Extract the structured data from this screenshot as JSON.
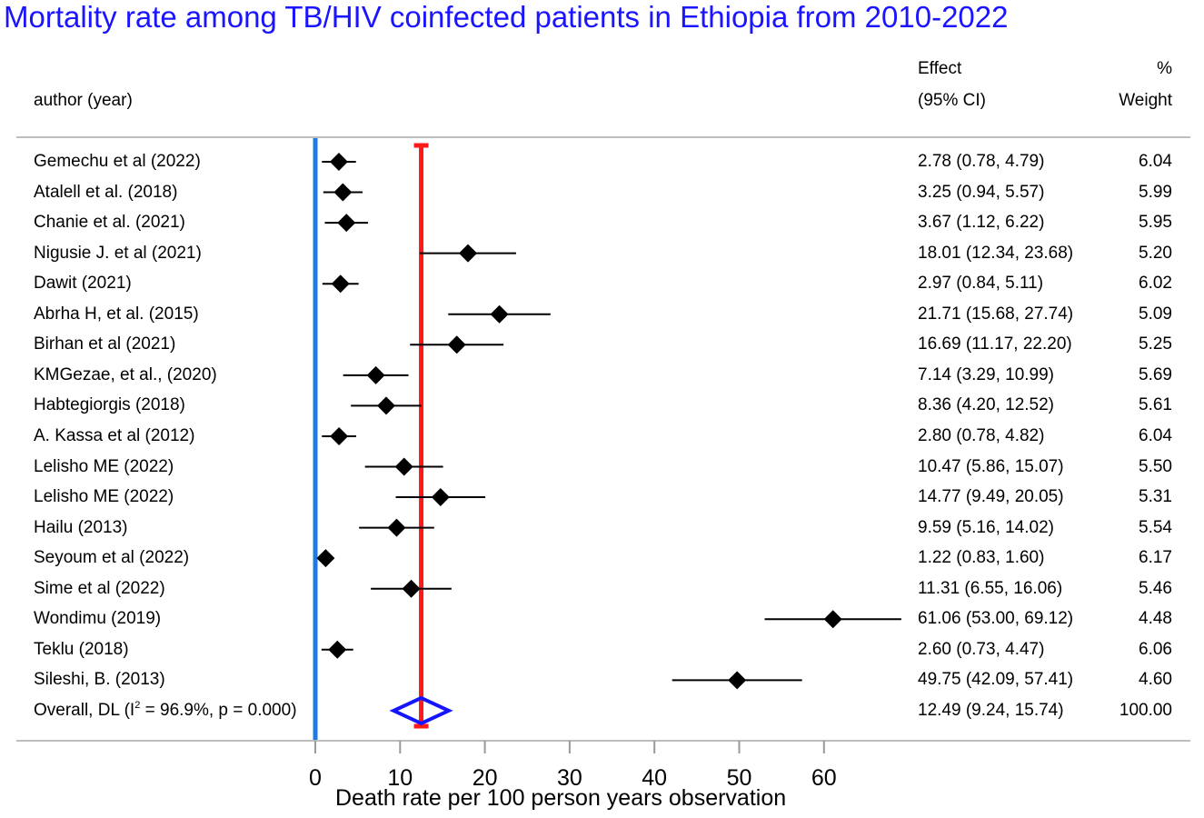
{
  "chart_data": {
    "type": "forest",
    "title": "Mortality rate among TB/HIV coinfected patients in Ethiopia from 2010-2022",
    "header": {
      "author_label": "author (year)",
      "effect_line1": "Effect",
      "effect_line2": "(95% CI)",
      "weight_line1": "%",
      "weight_line2": "Weight"
    },
    "xlabel": "Death rate per 100 person years observation",
    "xticks": [
      "0",
      "10",
      "20",
      "30",
      "40",
      "50",
      "60"
    ],
    "xlim": [
      0,
      70
    ],
    "null_line": 0,
    "pooled_line": 12.49,
    "colors": {
      "title": "#1a14ff",
      "null_line": "#1e7be0",
      "pooled_line": "#ff1a1a",
      "overall_diamond": "#1414ff",
      "study_marker": "#000000"
    },
    "studies": [
      {
        "label": "Gemechu et al (2022)",
        "es": 2.78,
        "lo": 0.78,
        "hi": 4.79,
        "ci_text": "2.78 (0.78, 4.79)",
        "weight": "6.04"
      },
      {
        "label": "Atalell et al.  (2018)",
        "es": 3.25,
        "lo": 0.94,
        "hi": 5.57,
        "ci_text": "3.25 (0.94, 5.57)",
        "weight": "5.99"
      },
      {
        "label": "Chanie et al. (2021)",
        "es": 3.67,
        "lo": 1.12,
        "hi": 6.22,
        "ci_text": "3.67 (1.12, 6.22)",
        "weight": "5.95"
      },
      {
        "label": "Nigusie J. et al (2021)",
        "es": 18.01,
        "lo": 12.34,
        "hi": 23.68,
        "ci_text": "18.01 (12.34, 23.68)",
        "weight": "5.20"
      },
      {
        "label": "Dawit (2021)",
        "es": 2.97,
        "lo": 0.84,
        "hi": 5.11,
        "ci_text": "2.97 (0.84, 5.11)",
        "weight": "6.02"
      },
      {
        "label": "Abrha H, et al. (2015)",
        "es": 21.71,
        "lo": 15.68,
        "hi": 27.74,
        "ci_text": "21.71 (15.68, 27.74)",
        "weight": "5.09"
      },
      {
        "label": "Birhan et al (2021)",
        "es": 16.69,
        "lo": 11.17,
        "hi": 22.2,
        "ci_text": "16.69 (11.17, 22.20)",
        "weight": "5.25"
      },
      {
        "label": "KMGezae, et al., (2020)",
        "es": 7.14,
        "lo": 3.29,
        "hi": 10.99,
        "ci_text": "7.14 (3.29, 10.99)",
        "weight": "5.69"
      },
      {
        "label": "Habtegiorgis (2018)",
        "es": 8.36,
        "lo": 4.2,
        "hi": 12.52,
        "ci_text": "8.36 (4.20, 12.52)",
        "weight": "5.61"
      },
      {
        "label": "A. Kassa et al (2012)",
        "es": 2.8,
        "lo": 0.78,
        "hi": 4.82,
        "ci_text": "2.80 (0.78, 4.82)",
        "weight": "6.04"
      },
      {
        "label": "Lelisho ME (2022)",
        "es": 10.47,
        "lo": 5.86,
        "hi": 15.07,
        "ci_text": "10.47 (5.86, 15.07)",
        "weight": "5.50"
      },
      {
        "label": "Lelisho ME (2022)",
        "es": 14.77,
        "lo": 9.49,
        "hi": 20.05,
        "ci_text": "14.77 (9.49, 20.05)",
        "weight": "5.31"
      },
      {
        "label": "Hailu (2013)",
        "es": 9.59,
        "lo": 5.16,
        "hi": 14.02,
        "ci_text": "9.59 (5.16, 14.02)",
        "weight": "5.54"
      },
      {
        "label": "Seyoum et al (2022)",
        "es": 1.22,
        "lo": 0.83,
        "hi": 1.6,
        "ci_text": "1.22 (0.83, 1.60)",
        "weight": "6.17"
      },
      {
        "label": "Sime et al (2022)",
        "es": 11.31,
        "lo": 6.55,
        "hi": 16.06,
        "ci_text": "11.31 (6.55, 16.06)",
        "weight": "5.46"
      },
      {
        "label": "Wondimu (2019)",
        "es": 61.06,
        "lo": 53.0,
        "hi": 69.12,
        "ci_text": "61.06 (53.00, 69.12)",
        "weight": "4.48"
      },
      {
        "label": "Teklu (2018)",
        "es": 2.6,
        "lo": 0.73,
        "hi": 4.47,
        "ci_text": "2.60 (0.73, 4.47)",
        "weight": "6.06"
      },
      {
        "label": "Sileshi, B. (2013)",
        "es": 49.75,
        "lo": 42.09,
        "hi": 57.41,
        "ci_text": "49.75 (42.09, 57.41)",
        "weight": "4.60"
      }
    ],
    "overall": {
      "label_prefix": "Overall, DL (I",
      "label_sup": "2",
      "label_suffix": " = 96.9%, p = 0.000)",
      "es": 12.49,
      "lo": 9.24,
      "hi": 15.74,
      "ci_text": "12.49 (9.24, 15.74)",
      "weight": "100.00"
    }
  }
}
